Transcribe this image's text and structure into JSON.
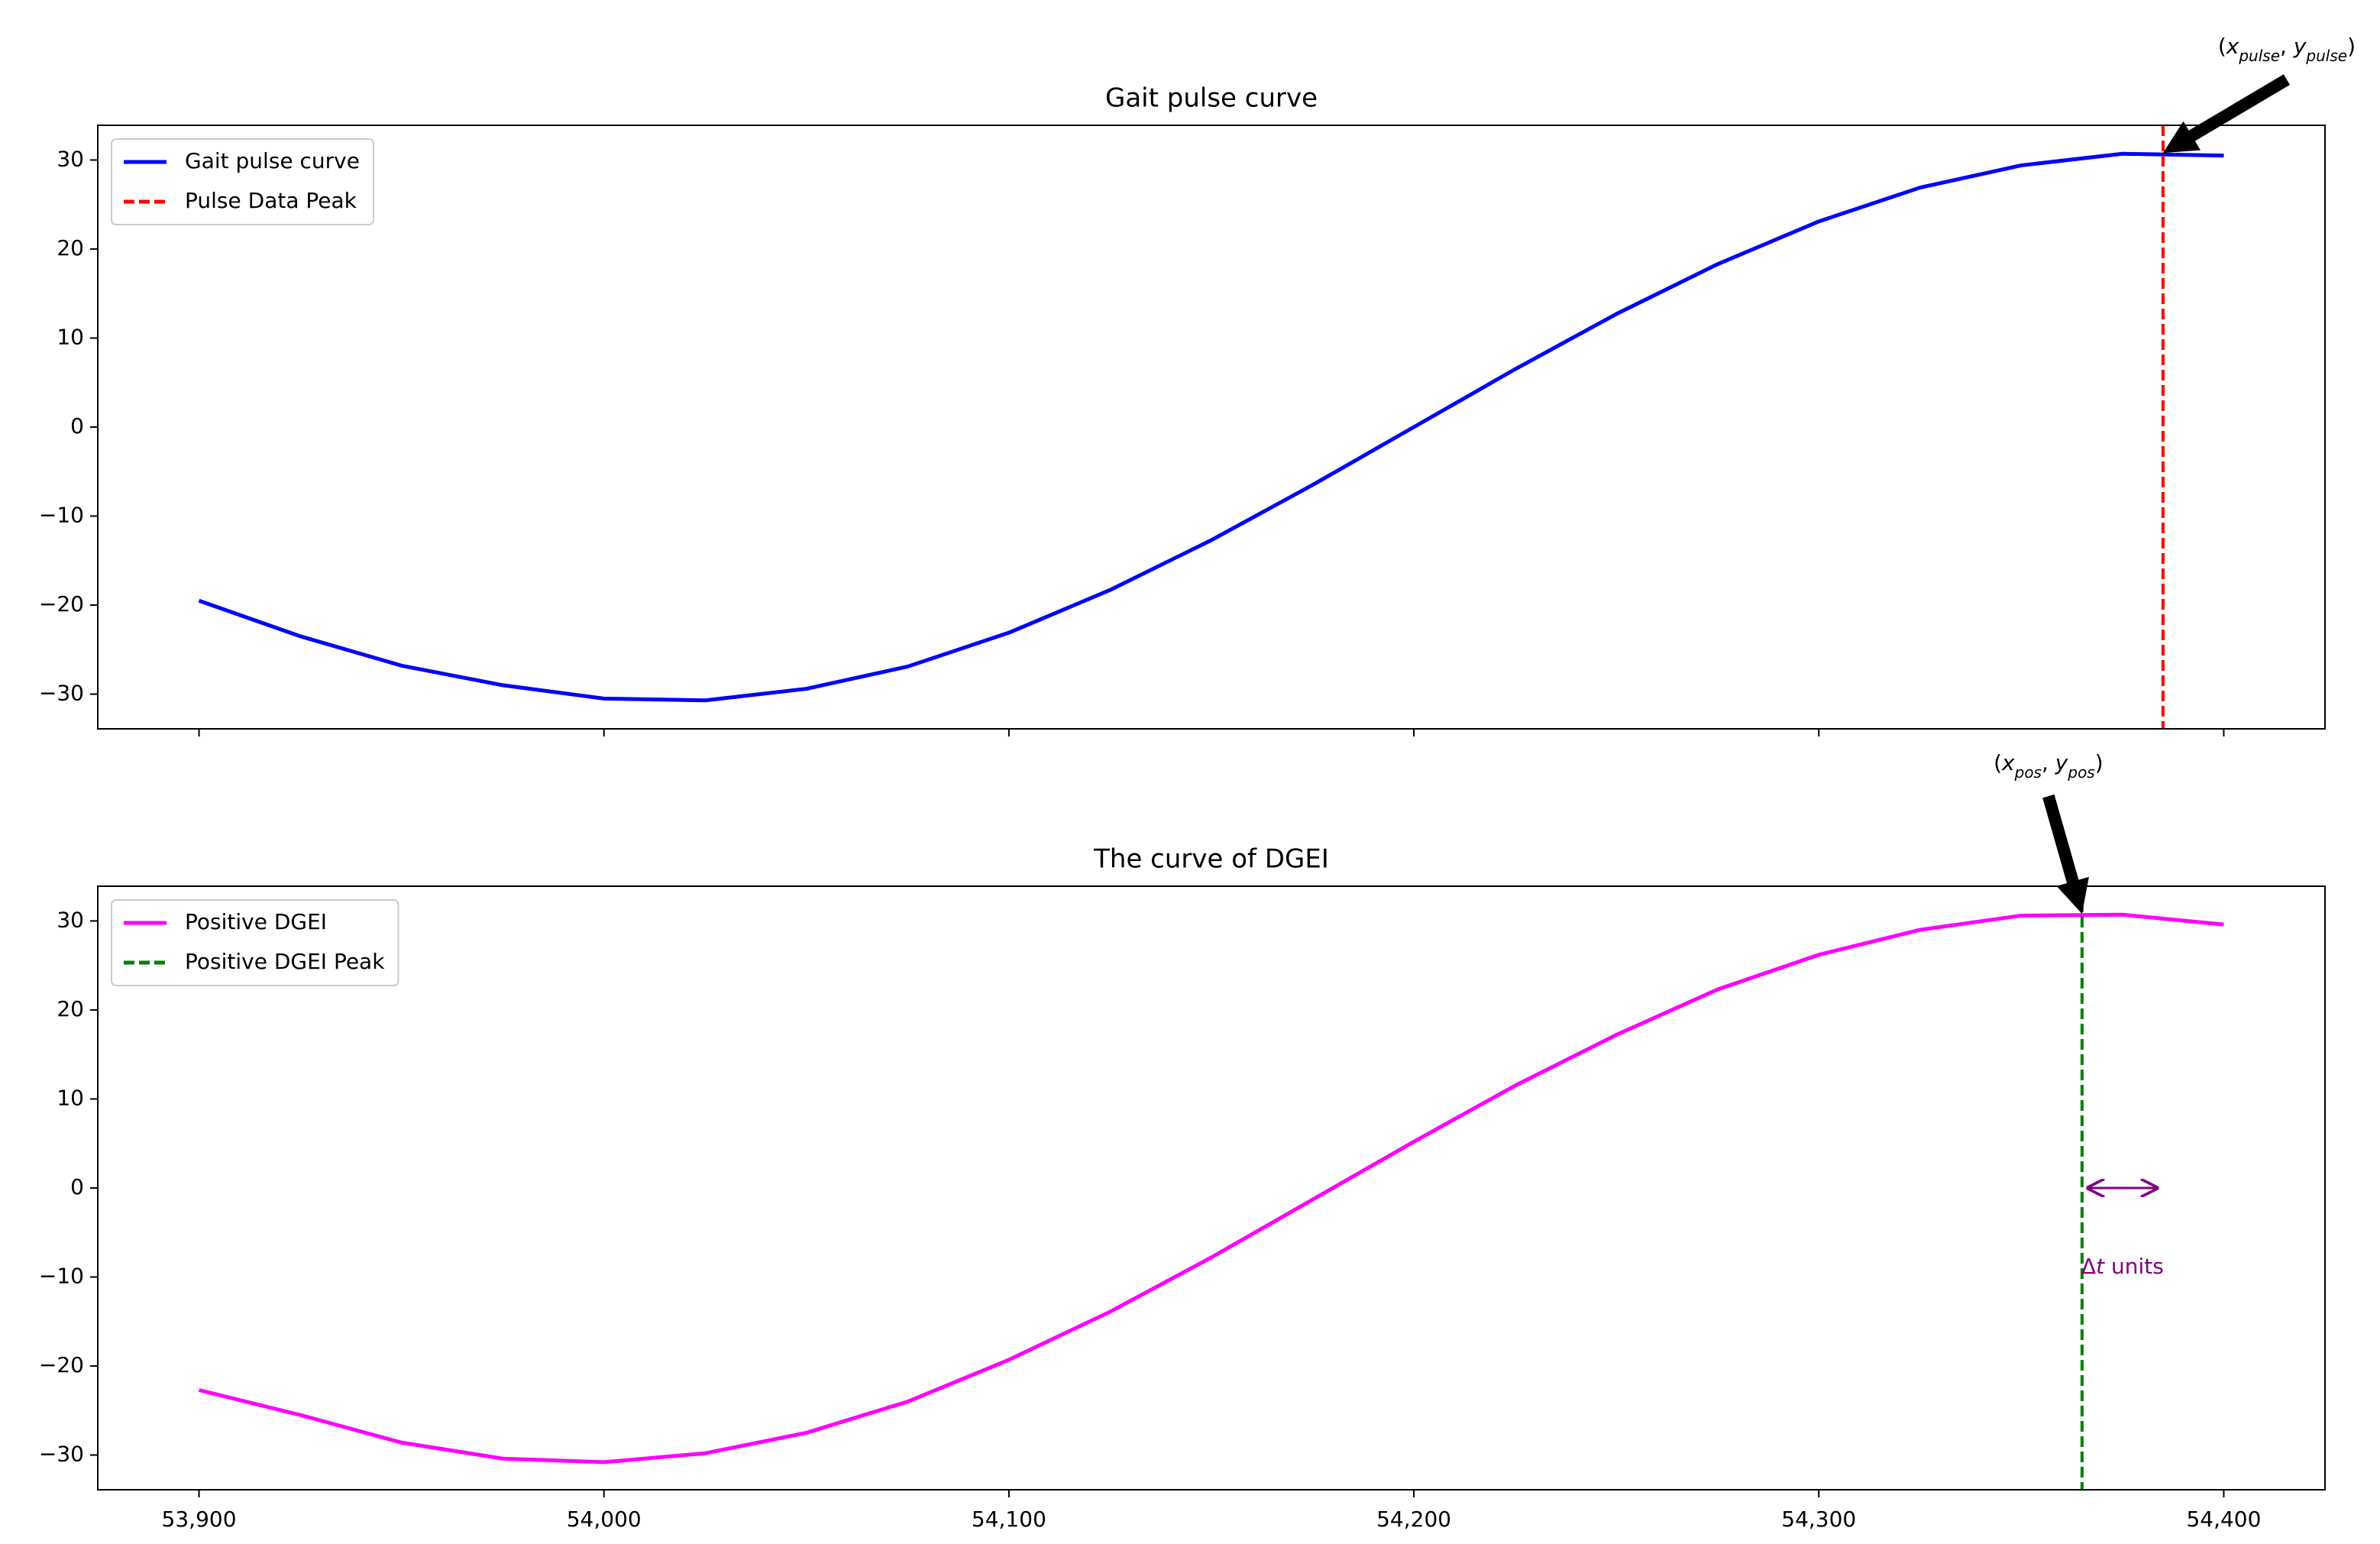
{
  "chart_data": [
    {
      "type": "line",
      "title": "Gait pulse curve",
      "x": [
        53900,
        53925,
        53950,
        53975,
        54000,
        54025,
        54050,
        54075,
        54100,
        54125,
        54150,
        54175,
        54200,
        54225,
        54250,
        54275,
        54300,
        54325,
        54350,
        54375,
        54400
      ],
      "series": [
        {
          "name": "Gait pulse curve",
          "color": "#0000ff",
          "values": [
            -19.5,
            -23.5,
            -26.8,
            -29.0,
            -30.5,
            -30.7,
            -29.4,
            -26.9,
            -23.1,
            -18.3,
            -12.7,
            -6.5,
            0.0,
            6.5,
            12.7,
            18.3,
            23.1,
            26.9,
            29.4,
            30.7,
            30.5
          ]
        }
      ],
      "peak": {
        "name": "Pulse Data Peak",
        "color": "#ff0000",
        "x": 54385,
        "y": 30.8
      },
      "annotation": {
        "open": "(",
        "x": "x",
        "x_sub": "pulse",
        "sep": ", ",
        "y": "y",
        "y_sub": "pulse",
        "close": ")"
      },
      "xlim": [
        53875,
        54425
      ],
      "ylim": [
        -33.9,
        33.9
      ],
      "xticks": [
        53900,
        54000,
        54100,
        54200,
        54300,
        54400
      ],
      "yticks": [
        {
          "value": -30,
          "label": "−30"
        },
        {
          "value": -20,
          "label": "−20"
        },
        {
          "value": -10,
          "label": "−10"
        },
        0,
        10,
        20,
        30
      ],
      "legend": "upper left"
    },
    {
      "type": "line",
      "title": "The curve of DGEI",
      "x": [
        53900,
        53925,
        53950,
        53975,
        54000,
        54025,
        54050,
        54075,
        54100,
        54125,
        54150,
        54175,
        54200,
        54225,
        54250,
        54275,
        54300,
        54325,
        54350,
        54375,
        54400
      ],
      "series": [
        {
          "name": "Positive DGEI",
          "color": "#ff00ff",
          "values": [
            -22.7,
            -25.5,
            -28.6,
            -30.4,
            -30.8,
            -29.8,
            -27.5,
            -24.0,
            -19.3,
            -13.9,
            -7.8,
            -1.3,
            5.2,
            11.5,
            17.2,
            22.3,
            26.2,
            29.0,
            30.6,
            30.7,
            29.6
          ]
        }
      ],
      "peak": {
        "name": "Positive DGEI Peak",
        "color": "#008000",
        "x": 54365,
        "y": 30.8
      },
      "annotation": {
        "open": "(",
        "x": "x",
        "x_sub": "pos",
        "sep": ", ",
        "y": "y",
        "y_sub": "pos",
        "close": ")"
      },
      "delta": {
        "delta": "Δ",
        "t": "t",
        "units": " units",
        "color": "#800080",
        "y": 0
      },
      "xlim": [
        53875,
        54425
      ],
      "ylim": [
        -33.9,
        33.9
      ],
      "xticks": [
        {
          "value": 53900,
          "label": "53,900"
        },
        {
          "value": 54000,
          "label": "54,000"
        },
        {
          "value": 54100,
          "label": "54,100"
        },
        {
          "value": 54200,
          "label": "54,200"
        },
        {
          "value": 54300,
          "label": "54,300"
        },
        {
          "value": 54400,
          "label": "54,400"
        }
      ],
      "yticks": [
        {
          "value": -30,
          "label": "−30"
        },
        {
          "value": -20,
          "label": "−20"
        },
        {
          "value": -10,
          "label": "−10"
        },
        0,
        10,
        20,
        30
      ],
      "legend": "upper left"
    }
  ]
}
